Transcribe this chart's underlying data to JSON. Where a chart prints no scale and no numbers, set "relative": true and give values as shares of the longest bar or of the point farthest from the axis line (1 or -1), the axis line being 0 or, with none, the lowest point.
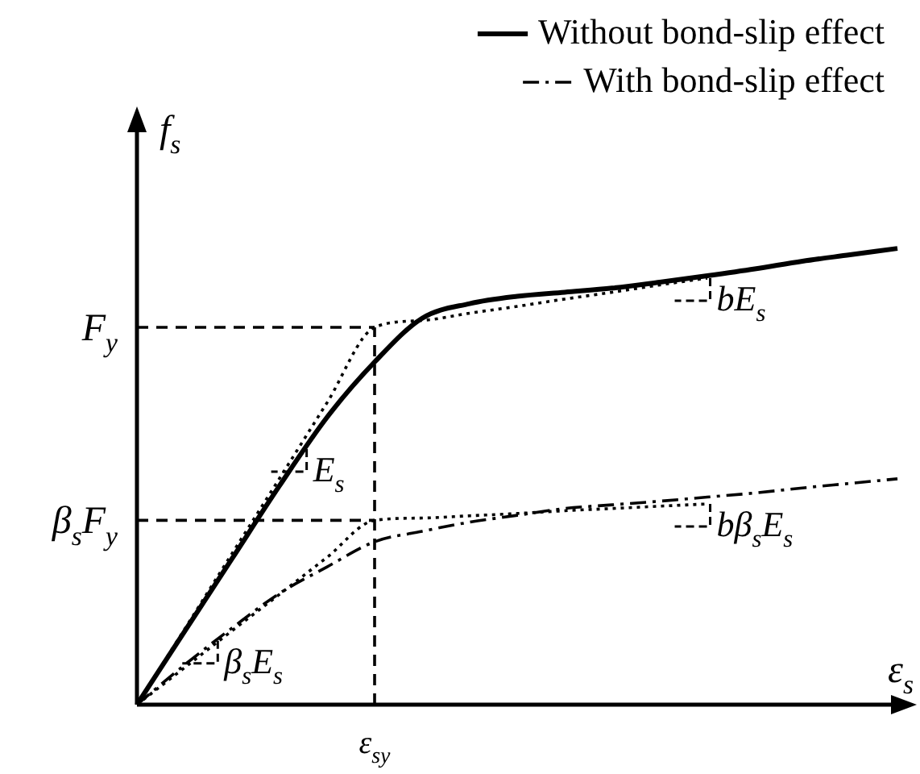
{
  "chart_data": {
    "type": "line",
    "relative": true,
    "xlabel": "ε$_{s}$",
    "ylabel": "f$_{s}$",
    "legend": "top right",
    "marker": "none",
    "categories": [
      null,
      null,
      null,
      null,
      null,
      null,
      null,
      null,
      null,
      null,
      null,
      null,
      null,
      null,
      null,
      null,
      null
    ],
    "series": [
      {
        "name": "Without bond-slip effect",
        "color": "#000000",
        "line_style": "solid",
        "values": [
          0,
          0.16,
          0.32,
          0.48,
          0.63,
          0.751,
          0.847,
          0.879,
          0.895,
          0.904,
          0.913,
          0.926,
          0.94,
          0.955,
          0.972,
          0.986,
          1
        ]
      },
      {
        "name": "With bond-slip effect",
        "color": "#000000",
        "line_style": "dashdot",
        "values": [
          0,
          0.087,
          0.168,
          0.244,
          0.302,
          0.357,
          0.38,
          0.4,
          0.415,
          0.43,
          0.438,
          0.446,
          0.455,
          0.464,
          0.475,
          0.485,
          0.495
        ]
      },
      {
        "color": "#000000",
        "line_style": "dotted",
        "values": [
          0,
          0.165,
          0.331,
          0.496,
          0.662,
          0.827,
          0.842,
          0.858,
          0.873,
          0.889,
          0.904,
          0.92,
          0.935,
          null,
          null,
          null,
          null
        ]
      },
      {
        "color": "#000000",
        "line_style": "dotted",
        "values": [
          0,
          0.081,
          0.162,
          0.242,
          0.323,
          0.404,
          0.409,
          0.414,
          0.419,
          0.425,
          0.43,
          0.435,
          0.44,
          null,
          null,
          null,
          null
        ]
      }
    ],
    "ref_lines": [
      {
        "axis": "y",
        "value": 0.827,
        "label": "F$_{y}$",
        "line_style": "dashed"
      },
      {
        "axis": "y",
        "value": 0.404,
        "label": "β$_{s}$F$_{y}$",
        "line_style": "dashed"
      }
    ],
    "annotations": [
      "E$_{s}$",
      "bE$_{s}$",
      "β$_{s}$E$_{s}$",
      "bβ$_{s}$E$_{s}$",
      "ε$_{sy}$"
    ]
  }
}
